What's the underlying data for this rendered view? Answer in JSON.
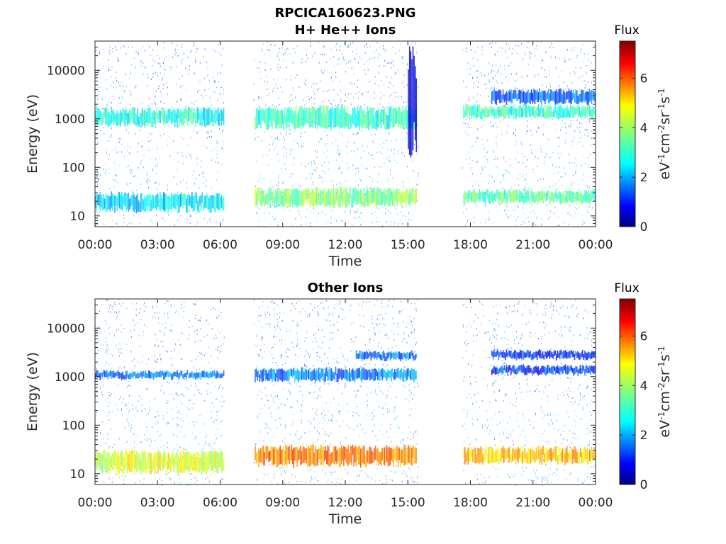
{
  "figure": {
    "title": "RPCICA160623.PNG"
  },
  "colorbar": {
    "title": "Flux",
    "unit_label": "eV-1cm-2sr-1s-1",
    "ticks": [
      "0",
      "2",
      "4",
      "6"
    ],
    "range": [
      0,
      7.5
    ]
  },
  "chart_data": [
    {
      "type": "heatmap",
      "title": "H+ He++ Ions",
      "xlabel": "Time",
      "ylabel": "Energy (eV)",
      "x_ticks": [
        "00:00",
        "03:00",
        "06:00",
        "09:00",
        "12:00",
        "15:00",
        "18:00",
        "21:00",
        "00:00"
      ],
      "y_ticks": [
        "10",
        "100",
        "1000",
        "10000"
      ],
      "y_scale": "log",
      "ylim": [
        6,
        40000
      ],
      "xlim_hours": [
        0,
        24
      ],
      "data_gaps_hours": [
        [
          6.2,
          7.6
        ],
        [
          15.5,
          17.6
        ]
      ],
      "bands": [
        {
          "t": [
            0,
            6.2
          ],
          "energy": [
            700,
            1700
          ],
          "flux": 3.0
        },
        {
          "t": [
            7.6,
            15.4
          ],
          "energy": [
            600,
            1800
          ],
          "flux": 3.2
        },
        {
          "t": [
            0,
            6.2
          ],
          "energy": [
            12,
            30
          ],
          "flux": 2.6
        },
        {
          "t": [
            7.6,
            15.4
          ],
          "energy": [
            15,
            38
          ],
          "flux": 3.8
        },
        {
          "t": [
            17.6,
            24
          ],
          "energy": [
            18,
            34
          ],
          "flux": 3.4
        },
        {
          "t": [
            19.0,
            24
          ],
          "energy": [
            2000,
            4000
          ],
          "flux": 1.6
        },
        {
          "t": [
            17.6,
            24
          ],
          "energy": [
            1000,
            1900
          ],
          "flux": 3.2
        },
        {
          "t": [
            15.0,
            15.4
          ],
          "energy": [
            150,
            40000
          ],
          "flux": 0.8
        }
      ]
    },
    {
      "type": "heatmap",
      "title": "Other Ions",
      "xlabel": "Time",
      "ylabel": "Energy (eV)",
      "x_ticks": [
        "00:00",
        "03:00",
        "06:00",
        "09:00",
        "12:00",
        "15:00",
        "18:00",
        "21:00",
        "00:00"
      ],
      "y_ticks": [
        "10",
        "100",
        "1000",
        "10000"
      ],
      "y_scale": "log",
      "ylim": [
        6,
        40000
      ],
      "xlim_hours": [
        0,
        24
      ],
      "data_gaps_hours": [
        [
          6.2,
          7.6
        ],
        [
          15.5,
          17.6
        ]
      ],
      "bands": [
        {
          "t": [
            0,
            6.2
          ],
          "energy": [
            900,
            1300
          ],
          "flux": 1.8
        },
        {
          "t": [
            7.6,
            15.4
          ],
          "energy": [
            800,
            1500
          ],
          "flux": 1.9
        },
        {
          "t": [
            0,
            6.2
          ],
          "energy": [
            10,
            30
          ],
          "flux": 4.4
        },
        {
          "t": [
            7.6,
            15.4
          ],
          "energy": [
            14,
            38
          ],
          "flux": 5.6
        },
        {
          "t": [
            17.6,
            24
          ],
          "energy": [
            16,
            36
          ],
          "flux": 5.2
        },
        {
          "t": [
            19.0,
            24
          ],
          "energy": [
            2300,
            3500
          ],
          "flux": 1.2
        },
        {
          "t": [
            19.0,
            24
          ],
          "energy": [
            1100,
            1700
          ],
          "flux": 1.3
        },
        {
          "t": [
            12.5,
            15.4
          ],
          "energy": [
            2200,
            3300
          ],
          "flux": 1.7
        }
      ]
    }
  ]
}
